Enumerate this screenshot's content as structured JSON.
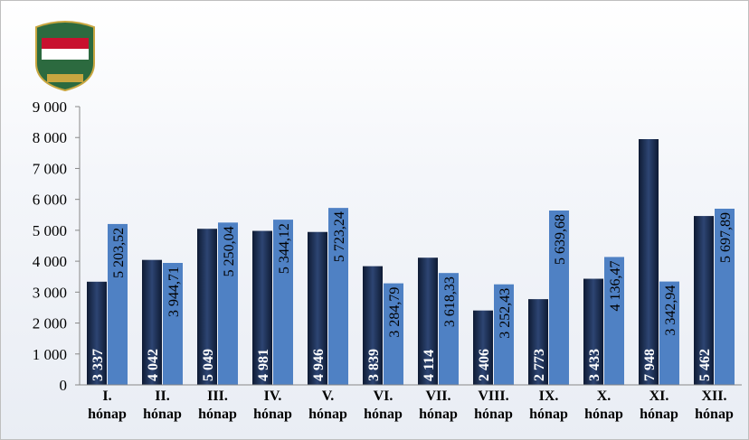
{
  "chart_data": {
    "type": "bar",
    "categories": [
      "I. hónap",
      "II. hónap",
      "III. hónap",
      "IV. hónap",
      "V. hónap",
      "VI. hónap",
      "VII. hónap",
      "VIII. hónap",
      "IX. hónap",
      "X. hónap",
      "XI. hónap",
      "XII. hónap"
    ],
    "series": [
      {
        "color": "#1b2a4a",
        "values": [
          3337,
          4042,
          5049,
          4981,
          4946,
          3839,
          4114,
          2406,
          2773,
          3433,
          7948,
          5462
        ],
        "value_labels": [
          "3 337",
          "4 042",
          "5 049",
          "4 981",
          "4 946",
          "3 839",
          "4 114",
          "2 406",
          "2 773",
          "3 433",
          "7 948",
          "5 462"
        ]
      },
      {
        "color": "#4f81c4",
        "values": [
          5203.52,
          3944.71,
          5250.04,
          5344.12,
          5723.24,
          3284.79,
          3618.33,
          3252.43,
          5639.68,
          4136.47,
          3342.94,
          5697.89
        ],
        "value_labels": [
          "5 203,52",
          "3 944,71",
          "5 250,04",
          "5 344,12",
          "5 723,24",
          "3 284,79",
          "3 618,33",
          "3 252,43",
          "5 639,68",
          "4 136,47",
          "3 342,94",
          "5 697,89"
        ]
      }
    ],
    "ylim": [
      0,
      9000
    ],
    "yticks": [
      0,
      {
        "value": 1000,
        "label": "1 000"
      },
      {
        "value": 2000,
        "label": "2 000"
      },
      {
        "value": 3000,
        "label": "3 000"
      },
      {
        "value": 4000,
        "label": "4 000"
      },
      {
        "value": 5000,
        "label": "5 000"
      },
      {
        "value": 6000,
        "label": "6 000"
      },
      {
        "value": 7000,
        "label": "7 000"
      },
      {
        "value": 8000,
        "label": "8 000"
      },
      {
        "value": 9000,
        "label": "9 000"
      }
    ]
  }
}
